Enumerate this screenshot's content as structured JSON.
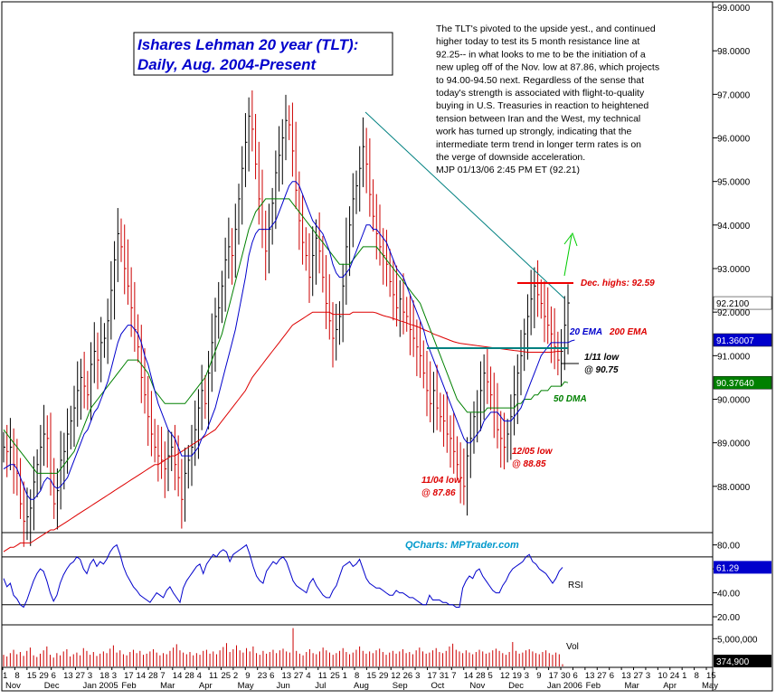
{
  "chart_data": {
    "type": "candlestick",
    "title": "Ishares Lehman 20 year (TLT):",
    "subtitle": "Daily, Aug. 2004-Present",
    "commentary": [
      "The TLT's pivoted to the upside yest., and continued",
      "higher today to test its 5 month resistance line at",
      "92.25-- in what looks to me to be the initiation of a",
      "new upleg off of the Nov. low at 87.86, which projects",
      "to 94.00-94.50 next.  Regardless of the sense that",
      "today's strength is associated with flight-to-quality",
      "buying in U.S. Treasuries in reaction to heightened",
      "tension between Iran and the West, my technical",
      "work has turned up strongly, indicating that the",
      "intermediate term trend in longer term rates is on",
      "the verge of downside acceleration.",
      "MJP 01/13/06  2:45 PM ET  (92.21)"
    ],
    "price_axis": {
      "ylim": [
        87.0,
        99.0
      ],
      "ticks": [
        "88.0000",
        "89.0000",
        "90.0000",
        "91.0000",
        "92.0000",
        "93.0000",
        "94.0000",
        "95.0000",
        "96.0000",
        "97.0000",
        "98.0000",
        "99.0000"
      ],
      "tick_values": [
        88,
        89,
        90,
        91,
        92,
        93,
        94,
        95,
        96,
        97,
        98,
        99
      ]
    },
    "tags": [
      {
        "label": "92.2100",
        "value": 92.21,
        "bg": "#ffffff",
        "fg": "#000000"
      },
      {
        "label": "91.36007",
        "value": 91.36,
        "bg": "#0000cc",
        "fg": "#ffffff"
      },
      {
        "label": "90.37640",
        "value": 90.38,
        "bg": "#008000",
        "fg": "#ffffff"
      }
    ],
    "annotations": [
      {
        "text": "Dec. highs: 92.59",
        "color": "#dd0000"
      },
      {
        "text": "20 EMA",
        "color": "#0000cc"
      },
      {
        "text": "200 EMA",
        "color": "#dd0000"
      },
      {
        "text": "1/11 low",
        "color": "#000000"
      },
      {
        "text": "@ 90.75",
        "color": "#000000"
      },
      {
        "text": "50 DMA",
        "color": "#008000"
      },
      {
        "text": "12/05 low",
        "color": "#dd0000"
      },
      {
        "text": "@ 88.85",
        "color": "#dd0000"
      },
      {
        "text": "11/04 low",
        "color": "#dd0000"
      },
      {
        "text": "@ 87.86",
        "color": "#dd0000"
      }
    ],
    "watermark": "QCharts: MPTrader.com",
    "rsi": {
      "label": "RSI",
      "ticks": [
        "80.00",
        "60.00",
        "40.00",
        "20.00"
      ],
      "tick_values": [
        80,
        60,
        40,
        20
      ],
      "ylim": [
        14,
        88
      ],
      "last": "61.29",
      "overbought": 70,
      "oversold": 30
    },
    "volume": {
      "label": "Vol",
      "ticks": [
        "5,000,000"
      ],
      "last": "374,900",
      "max": 7000000
    },
    "x_date_labels": [
      "1",
      "8",
      "15",
      "29",
      "6",
      "13",
      "27",
      "3",
      "18",
      "3",
      "17",
      "14",
      "28",
      "7",
      "14",
      "28",
      "4",
      "11",
      "25",
      "2",
      "9",
      "23",
      "6",
      "13",
      "27",
      "4",
      "11",
      "25",
      "1",
      "8",
      "15",
      "29",
      "12",
      "26",
      "3",
      "17",
      "31",
      "7",
      "14",
      "28",
      "5",
      "12",
      "19",
      "3",
      "9",
      "17",
      "30",
      "6",
      "13",
      "27",
      "6",
      "13",
      "27",
      "3",
      "10",
      "24",
      "1",
      "8",
      "15"
    ],
    "x_month_labels": [
      "Nov",
      "Dec",
      "Jan 2005",
      "Feb",
      "Mar",
      "Apr",
      "May",
      "Jun",
      "Jul",
      "Aug",
      "Sep",
      "Oct",
      "Nov",
      "Dec",
      "Jan 2006",
      "Feb",
      "Mar",
      "Apr",
      "May"
    ],
    "closes": [
      88.9,
      88.8,
      88.9,
      88.5,
      88.3,
      87.6,
      87.2,
      87.3,
      87.5,
      88.1,
      88.5,
      88.9,
      89.2,
      89.1,
      88.3,
      87.6,
      87.9,
      88.6,
      88.8,
      89.2,
      89.5,
      89.8,
      90.2,
      90.5,
      90.3,
      90.1,
      90.8,
      91.1,
      90.9,
      91.3,
      91.4,
      91.8,
      92.5,
      93.2,
      93.8,
      93.5,
      93.0,
      92.6,
      92.1,
      91.6,
      91.2,
      90.5,
      90.1,
      89.6,
      89.2,
      88.9,
      88.7,
      88.6,
      88.4,
      88.7,
      88.9,
      88.5,
      88.2,
      87.7,
      88.3,
      88.6,
      88.9,
      89.3,
      89.8,
      90.2,
      89.9,
      90.6,
      91.3,
      91.9,
      92.1,
      92.6,
      93.2,
      93.5,
      93.3,
      93.9,
      94.6,
      95.3,
      95.9,
      96.5,
      96.2,
      95.4,
      94.6,
      93.9,
      93.4,
      93.9,
      94.5,
      95.2,
      95.6,
      96.0,
      96.4,
      96.3,
      95.7,
      94.8,
      94.1,
      93.6,
      93.3,
      92.8,
      93.3,
      93.7,
      93.4,
      92.8,
      92.2,
      91.8,
      91.4,
      91.6,
      91.9,
      92.6,
      93.5,
      94.0,
      94.6,
      94.9,
      95.3,
      95.8,
      95.4,
      94.7,
      94.2,
      93.8,
      93.5,
      93.3,
      93.1,
      92.7,
      92.4,
      92.1,
      92.3,
      92.0,
      91.9,
      91.6,
      91.4,
      91.2,
      91.0,
      90.6,
      90.2,
      89.9,
      90.2,
      89.8,
      89.6,
      89.5,
      89.2,
      89.1,
      88.8,
      88.5,
      88.2,
      88.0,
      88.7,
      89.1,
      89.6,
      89.7,
      90.2,
      90.6,
      90.4,
      90.1,
      89.7,
      89.3,
      89.1,
      88.9,
      89.2,
      89.6,
      90.1,
      90.6,
      91.0,
      91.5,
      91.9,
      92.3,
      92.6,
      92.4,
      92.2,
      91.9,
      91.7,
      91.5,
      91.2,
      90.9,
      91.1,
      91.7,
      92.21
    ],
    "ema20": [
      88.4,
      88.45,
      88.5,
      88.5,
      88.4,
      88.2,
      88.0,
      87.8,
      87.7,
      87.7,
      87.8,
      87.9,
      88.1,
      88.2,
      88.15,
      88.0,
      87.95,
      88.0,
      88.1,
      88.2,
      88.4,
      88.6,
      88.8,
      89.0,
      89.2,
      89.3,
      89.5,
      89.7,
      89.8,
      90.0,
      90.2,
      90.4,
      90.7,
      91.0,
      91.3,
      91.5,
      91.6,
      91.7,
      91.7,
      91.6,
      91.5,
      91.3,
      91.0,
      90.8,
      90.5,
      90.2,
      89.9,
      89.7,
      89.5,
      89.3,
      89.2,
      89.1,
      88.9,
      88.7,
      88.7,
      88.7,
      88.7,
      88.8,
      88.9,
      89.1,
      89.2,
      89.4,
      89.6,
      89.8,
      90.1,
      90.4,
      90.7,
      91.0,
      91.3,
      91.6,
      92.0,
      92.4,
      92.8,
      93.3,
      93.6,
      93.8,
      93.9,
      93.9,
      93.9,
      93.9,
      94.0,
      94.1,
      94.3,
      94.5,
      94.7,
      94.9,
      95.0,
      95.0,
      94.9,
      94.7,
      94.5,
      94.3,
      94.1,
      94.0,
      93.9,
      93.8,
      93.6,
      93.4,
      93.1,
      92.9,
      92.8,
      92.8,
      92.9,
      93.0,
      93.2,
      93.4,
      93.6,
      93.8,
      94.0,
      94.0,
      93.9,
      93.9,
      93.8,
      93.7,
      93.6,
      93.4,
      93.2,
      93.0,
      92.9,
      92.8,
      92.6,
      92.4,
      92.2,
      92.0,
      91.8,
      91.6,
      91.3,
      91.1,
      90.9,
      90.7,
      90.5,
      90.3,
      90.1,
      89.9,
      89.7,
      89.5,
      89.3,
      89.1,
      89.0,
      89.0,
      89.1,
      89.2,
      89.3,
      89.5,
      89.6,
      89.7,
      89.7,
      89.7,
      89.6,
      89.5,
      89.5,
      89.5,
      89.6,
      89.7,
      89.8,
      90.0,
      90.2,
      90.4,
      90.6,
      90.8,
      91.0,
      91.1,
      91.2,
      91.3,
      91.3,
      91.3,
      91.3,
      91.3,
      91.3,
      91.34,
      91.36
    ],
    "sma50": [
      89.3,
      89.2,
      89.1,
      89.0,
      88.9,
      88.8,
      88.7,
      88.6,
      88.5,
      88.4,
      88.3,
      88.3,
      88.3,
      88.3,
      88.3,
      88.3,
      88.3,
      88.4,
      88.5,
      88.6,
      88.7,
      88.8,
      89.0,
      89.2,
      89.4,
      89.6,
      89.8,
      89.9,
      90.0,
      90.1,
      90.2,
      90.3,
      90.4,
      90.5,
      90.6,
      90.7,
      90.8,
      90.9,
      90.9,
      90.9,
      90.9,
      90.8,
      90.7,
      90.6,
      90.4,
      90.2,
      90.1,
      90.0,
      89.9,
      89.9,
      89.9,
      89.9,
      89.9,
      89.9,
      89.9,
      90.0,
      90.1,
      90.2,
      90.3,
      90.4,
      90.5,
      90.7,
      90.9,
      91.1,
      91.3,
      91.5,
      91.8,
      92.1,
      92.4,
      92.7,
      93.0,
      93.3,
      93.6,
      93.9,
      94.1,
      94.3,
      94.4,
      94.5,
      94.6,
      94.6,
      94.6,
      94.6,
      94.6,
      94.6,
      94.6,
      94.6,
      94.5,
      94.4,
      94.3,
      94.2,
      94.1,
      94.0,
      93.9,
      93.8,
      93.7,
      93.6,
      93.5,
      93.4,
      93.3,
      93.2,
      93.1,
      93.1,
      93.1,
      93.1,
      93.2,
      93.3,
      93.4,
      93.5,
      93.5,
      93.5,
      93.5,
      93.5,
      93.4,
      93.3,
      93.2,
      93.1,
      93.0,
      92.9,
      92.8,
      92.7,
      92.6,
      92.5,
      92.4,
      92.3,
      92.2,
      92.0,
      91.8,
      91.6,
      91.4,
      91.2,
      91.0,
      90.8,
      90.6,
      90.4,
      90.2,
      90.0,
      89.9,
      89.8,
      89.7,
      89.7,
      89.7,
      89.7,
      89.7,
      89.7,
      89.8,
      89.8,
      89.8,
      89.8,
      89.8,
      89.8,
      89.8,
      89.8,
      89.8,
      89.9,
      89.9,
      90.0,
      90.0,
      90.0,
      90.1,
      90.1,
      90.2,
      90.2,
      90.2,
      90.3,
      90.3,
      90.3,
      90.3,
      90.4,
      90.38
    ],
    "ema200": [
      86.5,
      86.55,
      86.6,
      86.6,
      86.65,
      86.7,
      86.7,
      86.7,
      86.7,
      86.75,
      86.8,
      86.85,
      86.9,
      86.95,
      87.0,
      87.0,
      87.05,
      87.1,
      87.15,
      87.2,
      87.25,
      87.3,
      87.35,
      87.4,
      87.45,
      87.5,
      87.55,
      87.6,
      87.65,
      87.7,
      87.75,
      87.8,
      87.85,
      87.9,
      87.95,
      88.0,
      88.05,
      88.1,
      88.15,
      88.2,
      88.25,
      88.3,
      88.35,
      88.4,
      88.45,
      88.5,
      88.5,
      88.55,
      88.6,
      88.65,
      88.7,
      88.7,
      88.75,
      88.8,
      88.85,
      88.9,
      88.95,
      89.0,
      89.05,
      89.1,
      89.15,
      89.2,
      89.25,
      89.3,
      89.4,
      89.5,
      89.6,
      89.7,
      89.8,
      89.9,
      90.0,
      90.1,
      90.2,
      90.35,
      90.5,
      90.6,
      90.7,
      90.8,
      90.9,
      91.0,
      91.1,
      91.2,
      91.3,
      91.4,
      91.5,
      91.6,
      91.7,
      91.75,
      91.8,
      91.85,
      91.9,
      91.95,
      92.0,
      92.0,
      92.0,
      92.0,
      92.0,
      92.0,
      91.95,
      91.95,
      91.95,
      91.95,
      91.95,
      91.95,
      92.0,
      92.0,
      92.0,
      92.0,
      92.0,
      92.0,
      92.0,
      91.98,
      91.95,
      91.92,
      91.9,
      91.88,
      91.85,
      91.83,
      91.8,
      91.78,
      91.75,
      91.72,
      91.7,
      91.67,
      91.64,
      91.6,
      91.57,
      91.54,
      91.5,
      91.47,
      91.44,
      91.41,
      91.38,
      91.35,
      91.32,
      91.3,
      91.28,
      91.27,
      91.26,
      91.25,
      91.24,
      91.23,
      91.22,
      91.21,
      91.2,
      91.19,
      91.18,
      91.17,
      91.16,
      91.15,
      91.14,
      91.13,
      91.12,
      91.11,
      91.1,
      91.09,
      91.08,
      91.08,
      91.08,
      91.08,
      91.08,
      91.08,
      91.08,
      91.08,
      91.09,
      91.1,
      91.1
    ],
    "rsi_values": [
      52,
      45,
      48,
      38,
      35,
      30,
      28,
      34,
      42,
      50,
      56,
      60,
      58,
      50,
      40,
      33,
      38,
      48,
      55,
      60,
      64,
      66,
      70,
      68,
      60,
      56,
      64,
      68,
      62,
      66,
      64,
      68,
      74,
      78,
      80,
      72,
      62,
      55,
      50,
      45,
      42,
      38,
      36,
      34,
      32,
      36,
      40,
      38,
      36,
      42,
      45,
      40,
      36,
      32,
      44,
      50,
      54,
      58,
      62,
      64,
      56,
      64,
      68,
      72,
      70,
      74,
      76,
      74,
      66,
      72,
      74,
      76,
      78,
      80,
      72,
      62,
      54,
      50,
      48,
      58,
      62,
      66,
      64,
      68,
      70,
      66,
      58,
      50,
      46,
      44,
      42,
      40,
      48,
      52,
      46,
      42,
      38,
      36,
      36,
      42,
      46,
      54,
      62,
      64,
      66,
      62,
      64,
      68,
      60,
      52,
      48,
      46,
      44,
      44,
      42,
      40,
      38,
      38,
      42,
      40,
      40,
      38,
      36,
      36,
      34,
      32,
      30,
      30,
      38,
      34,
      34,
      34,
      32,
      32,
      30,
      30,
      28,
      28,
      44,
      50,
      54,
      52,
      58,
      60,
      54,
      50,
      46,
      42,
      40,
      40,
      46,
      50,
      56,
      60,
      62,
      64,
      66,
      70,
      72,
      66,
      64,
      60,
      58,
      56,
      52,
      48,
      52,
      58,
      61.3
    ],
    "volume_values": [
      2.1,
      1.8,
      2.4,
      3.0,
      2.2,
      2.6,
      1.9,
      2.8,
      3.4,
      2.0,
      1.7,
      2.3,
      2.9,
      3.6,
      2.1,
      1.6,
      2.4,
      2.0,
      2.7,
      3.1,
      1.8,
      2.2,
      2.5,
      2.0,
      3.3,
      2.8,
      2.1,
      2.6,
      1.9,
      2.3,
      2.7,
      2.4,
      3.2,
      3.8,
      2.5,
      2.9,
      2.2,
      2.0,
      2.6,
      3.0,
      2.4,
      2.8,
      2.1,
      2.3,
      2.7,
      3.1,
      2.5,
      2.0,
      2.4,
      2.2,
      2.8,
      3.4,
      4.0,
      2.9,
      2.5,
      2.2,
      2.6,
      2.0,
      2.4,
      2.1,
      2.8,
      3.0,
      2.3,
      2.7,
      2.2,
      2.9,
      3.5,
      4.2,
      2.6,
      3.1,
      3.8,
      2.9,
      2.5,
      3.3,
      2.7,
      3.6,
      2.4,
      2.1,
      2.8,
      2.3,
      2.6,
      3.0,
      2.4,
      2.9,
      3.2,
      2.7,
      2.5,
      6.9,
      2.8,
      2.3,
      2.0,
      2.6,
      3.1,
      2.4,
      2.2,
      2.7,
      3.4,
      2.9,
      2.5,
      2.1,
      2.4,
      2.8,
      3.3,
      2.6,
      2.2,
      2.5,
      3.0,
      3.6,
      2.8,
      2.3,
      2.7,
      2.4,
      2.9,
      3.2,
      2.6,
      2.1,
      2.5,
      2.8,
      2.3,
      2.7,
      3.1,
      2.4,
      2.6,
      2.2,
      2.9,
      3.4,
      2.7,
      2.3,
      2.5,
      2.9,
      3.3,
      2.6,
      2.4,
      2.8,
      3.6,
      4.1,
      3.0,
      2.7,
      2.4,
      2.9,
      2.5,
      2.2,
      2.6,
      3.0,
      2.7,
      2.3,
      2.5,
      2.9,
      3.2,
      2.8,
      2.4,
      2.1,
      2.6,
      4.4,
      2.8,
      2.3,
      2.5,
      2.9,
      3.1,
      2.7,
      2.4,
      2.2,
      2.6,
      2.9,
      2.4,
      2.1,
      2.5,
      2.2,
      0.4
    ]
  }
}
